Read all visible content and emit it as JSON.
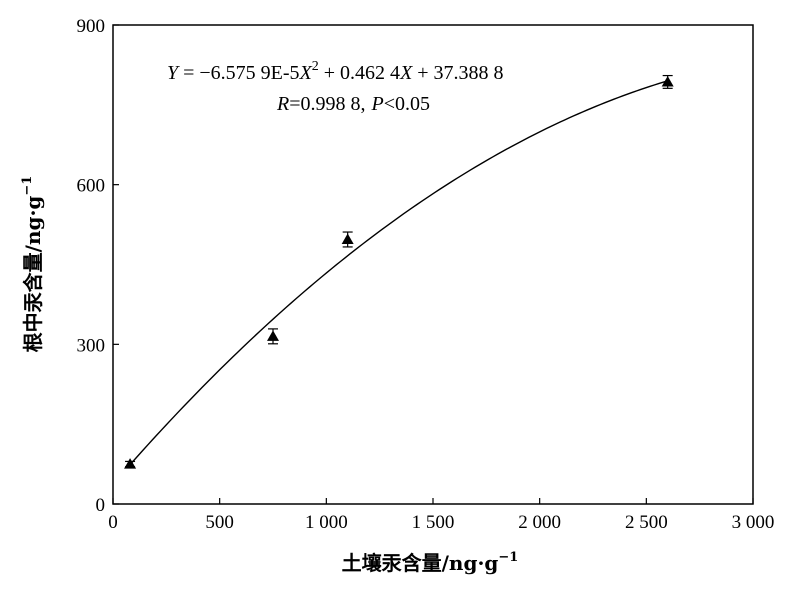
{
  "chart_data": {
    "type": "scatter",
    "xlabel": "土壤汞含量/ng·g",
    "xlabel_sup": "−1",
    "ylabel": "根中汞含量/ng·g",
    "ylabel_sup": "−1",
    "xlim": [
      0,
      3000
    ],
    "ylim": [
      0,
      900
    ],
    "x_ticks": [
      0,
      500,
      1000,
      1500,
      2000,
      2500,
      3000
    ],
    "x_tick_labels": [
      "0",
      "500",
      "1 000",
      "1 500",
      "2 000",
      "2 500",
      "3 000"
    ],
    "y_ticks": [
      0,
      300,
      600,
      900
    ],
    "y_tick_labels": [
      "0",
      "300",
      "600",
      "900"
    ],
    "grid": false,
    "marker": "triangle",
    "points": [
      {
        "x": 80,
        "y": 75,
        "err": 5
      },
      {
        "x": 750,
        "y": 315,
        "err": 14
      },
      {
        "x": 1100,
        "y": 497,
        "err": 14
      },
      {
        "x": 2600,
        "y": 793,
        "err": 12
      }
    ],
    "fit": {
      "type": "quadratic",
      "a": -6.5759e-05,
      "b": 0.4624,
      "c": 37.3888,
      "x_range": [
        80,
        2600
      ]
    },
    "annotation": {
      "eq_Y": "Y",
      "eq_mid": " = −6.575 9E-5",
      "eq_X1": "X",
      "eq_sup": "2",
      "eq_mid2": " + 0.462 4",
      "eq_X2": "X",
      "eq_tail": " + 37.388 8",
      "r_R": "R",
      "r_val": "=0.998 8,",
      "r_P": "P",
      "r_tail": "<0.05"
    }
  }
}
